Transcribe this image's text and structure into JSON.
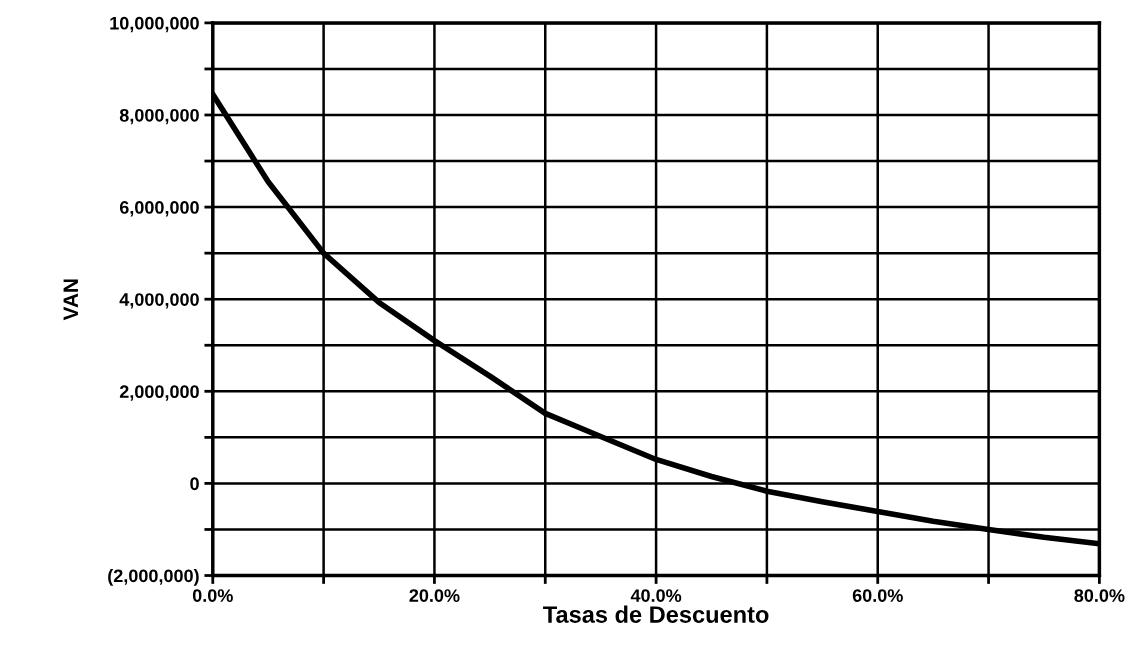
{
  "chart_data": {
    "type": "line",
    "xlabel": "Tasas de Descuento",
    "ylabel": "VAN",
    "x": [
      0,
      5,
      10,
      15,
      20,
      25,
      30,
      35,
      40,
      45,
      50,
      55,
      60,
      65,
      70,
      75,
      80
    ],
    "series": [
      {
        "color": "#000000",
        "values": [
          8450000,
          6550000,
          5000000,
          3930000,
          3100000,
          2330000,
          1520000,
          1020000,
          520000,
          150000,
          -170000,
          -400000,
          -610000,
          -820000,
          -1000000,
          -1170000,
          -1310000
        ]
      }
    ],
    "xlim": [
      0,
      80
    ],
    "xticks": [
      {
        "value": 0,
        "label": "0.0%"
      },
      {
        "value": 10,
        "label": null
      },
      {
        "value": 20,
        "label": "20.0%"
      },
      {
        "value": 30,
        "label": null
      },
      {
        "value": 40,
        "label": "40.0%"
      },
      {
        "value": 50,
        "label": null
      },
      {
        "value": 60,
        "label": "60.0%"
      },
      {
        "value": 70,
        "label": null
      },
      {
        "value": 80,
        "label": "80.0%"
      }
    ],
    "ylim": [
      -2000000,
      10000000
    ],
    "yticks": [
      {
        "value": -2000000,
        "label": "(2,000,000)"
      },
      {
        "value": -1000000,
        "label": null
      },
      {
        "value": 0,
        "label": "0"
      },
      {
        "value": 1000000,
        "label": null
      },
      {
        "value": 2000000,
        "label": "2,000,000"
      },
      {
        "value": 3000000,
        "label": null
      },
      {
        "value": 4000000,
        "label": "4,000,000"
      },
      {
        "value": 5000000,
        "label": null
      },
      {
        "value": 6000000,
        "label": "6,000,000"
      },
      {
        "value": 7000000,
        "label": null
      },
      {
        "value": 8000000,
        "label": "8,000,000"
      },
      {
        "value": 9000000,
        "label": null
      },
      {
        "value": 10000000,
        "label": "10,000,000"
      }
    ],
    "grid": true,
    "marker": "none",
    "line_style": "solid"
  }
}
